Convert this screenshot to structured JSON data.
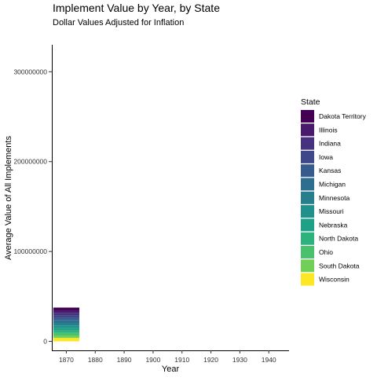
{
  "chart_data": {
    "type": "bar",
    "stacked": true,
    "title": "Implement Value by Year, by State",
    "subtitle": "Dollar Values Adjusted for Inflation",
    "xlabel": "Year",
    "ylabel": "Average Value of All Implements",
    "x_ticks": [
      "1870",
      "1880",
      "1890",
      "1900",
      "1910",
      "1920",
      "1930",
      "1940"
    ],
    "x_range": [
      1865,
      1947
    ],
    "y_ticks": [
      "0",
      "100000000",
      "200000000",
      "300000000"
    ],
    "y_range": [
      -10000000,
      330000000
    ],
    "grid": false,
    "legend_position": "right",
    "legend_title": "State",
    "bar_year": 1870,
    "bar_width_years": 9,
    "series": [
      {
        "name": "Dakota Territory",
        "color": "#440154",
        "value": 3000000
      },
      {
        "name": "Illinois",
        "color": "#481b6d",
        "value": 2800000
      },
      {
        "name": "Indiana",
        "color": "#46327e",
        "value": 2800000
      },
      {
        "name": "Iowa",
        "color": "#3f4889",
        "value": 2800000
      },
      {
        "name": "Kansas",
        "color": "#365c8d",
        "value": 2800000
      },
      {
        "name": "Michigan",
        "color": "#2e6e8e",
        "value": 2800000
      },
      {
        "name": "Minnesota",
        "color": "#277f8e",
        "value": 2800000
      },
      {
        "name": "Missouri",
        "color": "#21918c",
        "value": 2800000
      },
      {
        "name": "Nebraska",
        "color": "#1fa187",
        "value": 2800000
      },
      {
        "name": "North Dakota",
        "color": "#2db27d",
        "value": 2800000
      },
      {
        "name": "Ohio",
        "color": "#4ac16d",
        "value": 2800000
      },
      {
        "name": "South Dakota",
        "color": "#71cf57",
        "value": 2800000
      },
      {
        "name": "Wisconsin",
        "color": "#fde725",
        "value": 3800000
      }
    ]
  }
}
